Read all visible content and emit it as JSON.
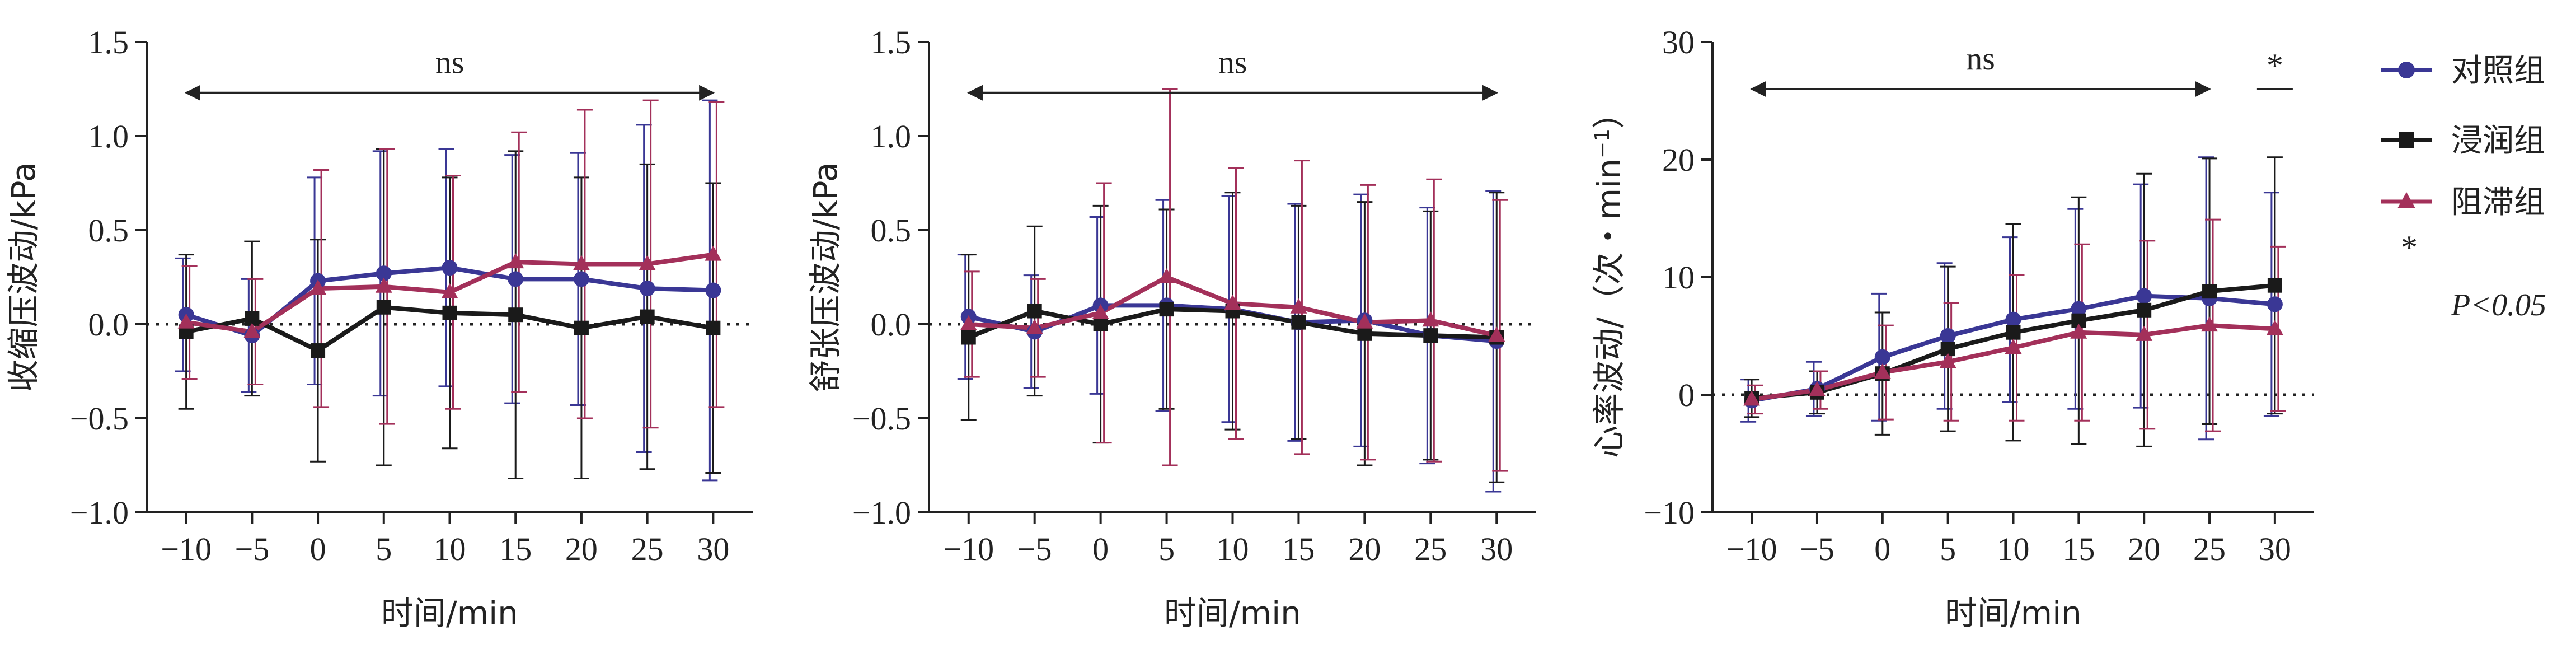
{
  "colors": {
    "control": "#3a3795",
    "infiltration": "#1a1a1a",
    "block": "#a3305a",
    "axis": "#222222"
  },
  "legend": {
    "items": [
      {
        "label": "对照组",
        "marker": "circle",
        "color": "#3a3795"
      },
      {
        "label": "浸润组",
        "marker": "square",
        "color": "#1a1a1a"
      },
      {
        "label": "阻滞组",
        "marker": "triangle",
        "color": "#a3305a"
      }
    ],
    "sig_symbol": "*",
    "sig_label": "P<0.05"
  },
  "chart_data": [
    {
      "type": "line",
      "ylabel": "收缩压波动/kPa",
      "xlabel": "时间/min",
      "x": [
        -10,
        -5,
        0,
        5,
        10,
        15,
        20,
        25,
        30
      ],
      "x_tick_labels": [
        "−10",
        "−5",
        "0",
        "5",
        "10",
        "15",
        "20",
        "25",
        "30"
      ],
      "ylim": [
        -1.0,
        1.5
      ],
      "y_ticks": [
        -1.0,
        -0.5,
        0.0,
        0.5,
        1.0,
        1.5
      ],
      "y_tick_labels": [
        "−1.0",
        "−0.5",
        "0.0",
        "0.5",
        "1.0",
        "1.5"
      ],
      "zero_line": "dotted",
      "annotation": {
        "text": "ns",
        "from_x": -10,
        "to_x": 30,
        "y": 1.23
      },
      "series": [
        {
          "name": "对照组",
          "values": [
            0.05,
            -0.06,
            0.23,
            0.27,
            0.3,
            0.24,
            0.24,
            0.19,
            0.18
          ],
          "error": [
            0.3,
            0.3,
            0.55,
            0.65,
            0.63,
            0.66,
            0.67,
            0.87,
            1.01
          ]
        },
        {
          "name": "浸润组",
          "values": [
            -0.04,
            0.03,
            -0.14,
            0.09,
            0.06,
            0.05,
            -0.02,
            0.04,
            -0.02
          ],
          "error": [
            0.41,
            0.41,
            0.59,
            0.84,
            0.72,
            0.87,
            0.8,
            0.81,
            0.77
          ]
        },
        {
          "name": "阻滞组",
          "values": [
            0.01,
            -0.04,
            0.19,
            0.2,
            0.17,
            0.33,
            0.32,
            0.32,
            0.37
          ],
          "error": [
            0.3,
            0.28,
            0.63,
            0.73,
            0.62,
            0.69,
            0.82,
            0.87,
            0.81
          ]
        }
      ]
    },
    {
      "type": "line",
      "ylabel": "舒张压波动/kPa",
      "xlabel": "时间/min",
      "x": [
        -10,
        -5,
        0,
        5,
        10,
        15,
        20,
        25,
        30
      ],
      "x_tick_labels": [
        "−10",
        "−5",
        "0",
        "5",
        "10",
        "15",
        "20",
        "25",
        "30"
      ],
      "ylim": [
        -1.0,
        1.5
      ],
      "y_ticks": [
        -1.0,
        -0.5,
        0.0,
        0.5,
        1.0,
        1.5
      ],
      "y_tick_labels": [
        "−1.0",
        "−0.5",
        "0.0",
        "0.5",
        "1.0",
        "1.5"
      ],
      "zero_line": "dotted",
      "annotation": {
        "text": "ns",
        "from_x": -10,
        "to_x": 30,
        "y": 1.23
      },
      "series": [
        {
          "name": "对照组",
          "values": [
            0.04,
            -0.04,
            0.1,
            0.1,
            0.08,
            0.01,
            0.02,
            -0.06,
            -0.09
          ],
          "error": [
            0.33,
            0.3,
            0.47,
            0.56,
            0.6,
            0.63,
            0.67,
            0.68,
            0.8
          ]
        },
        {
          "name": "浸润组",
          "values": [
            -0.07,
            0.07,
            0.0,
            0.08,
            0.07,
            0.01,
            -0.05,
            -0.06,
            -0.07
          ],
          "error": [
            0.44,
            0.45,
            0.63,
            0.53,
            0.63,
            0.62,
            0.7,
            0.66,
            0.77
          ]
        },
        {
          "name": "阻滞组",
          "values": [
            0.0,
            -0.02,
            0.06,
            0.25,
            0.11,
            0.09,
            0.01,
            0.02,
            -0.06
          ],
          "error": [
            0.28,
            0.26,
            0.69,
            1.0,
            0.72,
            0.78,
            0.73,
            0.75,
            0.72
          ]
        }
      ]
    },
    {
      "type": "line",
      "ylabel": "心率波动/（次・min",
      "ylabel_superscript": "−1",
      "ylabel_suffix": "）",
      "xlabel": "时间/min",
      "x": [
        -10,
        -5,
        0,
        5,
        10,
        15,
        20,
        25,
        30
      ],
      "x_tick_labels": [
        "−10",
        "−5",
        "0",
        "5",
        "10",
        "15",
        "20",
        "25",
        "30"
      ],
      "ylim": [
        -10,
        30
      ],
      "y_ticks": [
        -10,
        0,
        10,
        20,
        30
      ],
      "y_tick_labels": [
        "−10",
        "0",
        "10",
        "20",
        "30"
      ],
      "zero_line": "dotted",
      "annotation": {
        "text": "ns",
        "from_x": -10,
        "to_x": 25,
        "y": 26
      },
      "significance": {
        "text": "*",
        "at_x": 30,
        "y": 26
      },
      "series": [
        {
          "name": "对照组",
          "values": [
            -0.5,
            0.5,
            3.2,
            5.0,
            6.4,
            7.3,
            8.4,
            8.2,
            7.7
          ],
          "error": [
            1.8,
            2.3,
            5.4,
            6.2,
            7.0,
            8.5,
            9.5,
            12.0,
            9.5
          ]
        },
        {
          "name": "浸润组",
          "values": [
            -0.3,
            0.2,
            1.8,
            3.9,
            5.3,
            6.3,
            7.2,
            8.8,
            9.3
          ],
          "error": [
            1.6,
            1.8,
            5.2,
            7.0,
            9.2,
            10.5,
            11.6,
            11.3,
            10.9
          ]
        },
        {
          "name": "阻滞组",
          "values": [
            -0.4,
            0.4,
            1.9,
            2.8,
            4.0,
            5.3,
            5.1,
            5.9,
            5.6
          ],
          "error": [
            1.2,
            1.6,
            4.0,
            5.0,
            6.2,
            7.5,
            8.0,
            9.0,
            7.0
          ]
        }
      ]
    }
  ]
}
